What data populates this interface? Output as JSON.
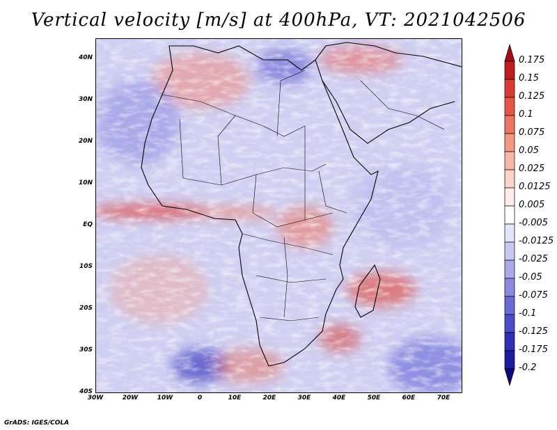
{
  "title": "Vertical velocity [m/s] at 400hPa, VT: 2021042506",
  "credit": "GrADS: IGES/COLA",
  "axes": {
    "lon_labels": [
      "30W",
      "20W",
      "10W",
      "0",
      "10E",
      "20E",
      "30E",
      "40E",
      "50E",
      "60E",
      "70E"
    ],
    "lat_labels": [
      "40N",
      "30N",
      "20N",
      "10N",
      "EQ",
      "10S",
      "20S",
      "30S",
      "40S"
    ]
  },
  "colorbar": {
    "labels": [
      "0.175",
      "0.15",
      "0.125",
      "0.1",
      "0.075",
      "0.05",
      "0.025",
      "0.0125",
      "0.005",
      "-0.005",
      "-0.0125",
      "-0.025",
      "-0.05",
      "-0.075",
      "-0.1",
      "-0.125",
      "-0.175",
      "-0.2"
    ],
    "colors": [
      "#a00d14",
      "#c11d1f",
      "#d93a33",
      "#e65546",
      "#ef7563",
      "#f39682",
      "#f8b6a6",
      "#fcd3c8",
      "#fdecea",
      "#ffffff",
      "#e5e5fa",
      "#c8c8f3",
      "#a9a9ec",
      "#8a8ae3",
      "#6a6ad9",
      "#4b4bcb",
      "#2f2fb8",
      "#1c1ca0",
      "#0a0a80"
    ]
  }
}
